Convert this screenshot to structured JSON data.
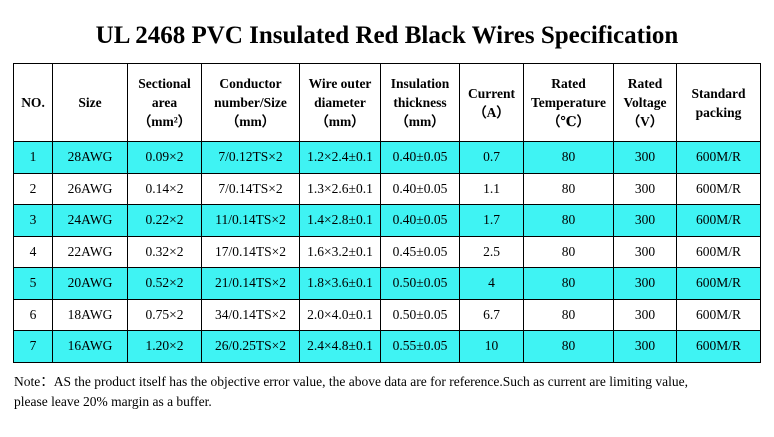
{
  "title": "UL 2468 PVC Insulated Red Black Wires Specification",
  "colors": {
    "shaded_row": "#3ff3f3",
    "plain_row": "#ffffff",
    "border": "#000000"
  },
  "table": {
    "headers": [
      [
        "NO."
      ],
      [
        "Size"
      ],
      [
        "Sectional",
        "area",
        "（mm²）"
      ],
      [
        "Conductor",
        "number/Size",
        "（mm）"
      ],
      [
        "Wire outer",
        "diameter",
        "（mm）"
      ],
      [
        "Insulation",
        "thickness",
        "（mm）"
      ],
      [
        "Current",
        "（A）"
      ],
      [
        "Rated",
        "Temperature",
        "（℃）"
      ],
      [
        "Rated",
        "Voltage",
        "（V）"
      ],
      [
        "Standard",
        "packing"
      ]
    ],
    "rows": [
      [
        "1",
        "28AWG",
        "0.09×2",
        "7/0.12TS×2",
        "1.2×2.4±0.1",
        "0.40±0.05",
        "0.7",
        "80",
        "300",
        "600M/R"
      ],
      [
        "2",
        "26AWG",
        "0.14×2",
        "7/0.14TS×2",
        "1.3×2.6±0.1",
        "0.40±0.05",
        "1.1",
        "80",
        "300",
        "600M/R"
      ],
      [
        "3",
        "24AWG",
        "0.22×2",
        "11/0.14TS×2",
        "1.4×2.8±0.1",
        "0.40±0.05",
        "1.7",
        "80",
        "300",
        "600M/R"
      ],
      [
        "4",
        "22AWG",
        "0.32×2",
        "17/0.14TS×2",
        "1.6×3.2±0.1",
        "0.45±0.05",
        "2.5",
        "80",
        "300",
        "600M/R"
      ],
      [
        "5",
        "20AWG",
        "0.52×2",
        "21/0.14TS×2",
        "1.8×3.6±0.1",
        "0.50±0.05",
        "4",
        "80",
        "300",
        "600M/R"
      ],
      [
        "6",
        "18AWG",
        "0.75×2",
        "34/0.14TS×2",
        "2.0×4.0±0.1",
        "0.50±0.05",
        "6.7",
        "80",
        "300",
        "600M/R"
      ],
      [
        "7",
        "16AWG",
        "1.20×2",
        "26/0.25TS×2",
        "2.4×4.8±0.1",
        "0.55±0.05",
        "10",
        "80",
        "300",
        "600M/R"
      ]
    ],
    "shaded_rows": [
      0,
      2,
      4,
      6
    ]
  },
  "note": {
    "line1": "Note：AS the product itself has the objective error value, the above data are for reference.Such as current are limiting value,",
    "line2": "please leave 20% margin as a buffer."
  }
}
